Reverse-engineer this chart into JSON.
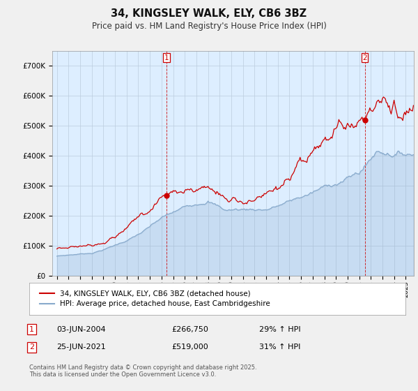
{
  "title": "34, KINGSLEY WALK, ELY, CB6 3BZ",
  "subtitle": "Price paid vs. HM Land Registry's House Price Index (HPI)",
  "ylim": [
    0,
    750000
  ],
  "yticks": [
    0,
    100000,
    200000,
    300000,
    400000,
    500000,
    600000,
    700000
  ],
  "ytick_labels": [
    "£0",
    "£100K",
    "£200K",
    "£300K",
    "£400K",
    "£500K",
    "£600K",
    "£700K"
  ],
  "line1_color": "#cc0000",
  "line2_color": "#88aacc",
  "plot_bg_color": "#ddeeff",
  "background_color": "#f0f0f0",
  "grid_color": "#bbccdd",
  "marker1_x": 2004.42,
  "marker1_y": 266750,
  "marker2_x": 2021.48,
  "marker2_y": 519000,
  "legend_line1": "34, KINGSLEY WALK, ELY, CB6 3BZ (detached house)",
  "legend_line2": "HPI: Average price, detached house, East Cambridgeshire",
  "footer": "Contains HM Land Registry data © Crown copyright and database right 2025.\nThis data is licensed under the Open Government Licence v3.0.",
  "xlim_start": 1994.6,
  "xlim_end": 2025.7
}
